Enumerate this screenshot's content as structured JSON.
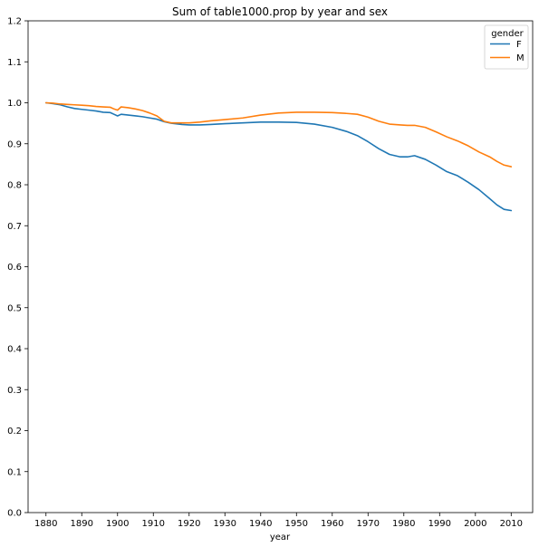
{
  "chart_data": {
    "type": "line",
    "title": "Sum of table1000.prop by year and sex",
    "xlabel": "year",
    "ylabel": "",
    "xlim": [
      1875,
      2016
    ],
    "ylim": [
      0.0,
      1.2
    ],
    "xticks": [
      1880,
      1890,
      1900,
      1910,
      1920,
      1930,
      1940,
      1950,
      1960,
      1970,
      1980,
      1990,
      2000,
      2010
    ],
    "xtick_labels": [
      "1880",
      "1890",
      "1900",
      "1910",
      "1920",
      "1930",
      "1940",
      "1950",
      "1960",
      "1970",
      "1980",
      "1990",
      "2000",
      "2010"
    ],
    "yticks": [
      0.0,
      0.1,
      0.2,
      0.3,
      0.4,
      0.5,
      0.6,
      0.7,
      0.8,
      0.9,
      1.0,
      1.1,
      1.2
    ],
    "ytick_labels": [
      "0.0",
      "0.1",
      "0.2",
      "0.3",
      "0.4",
      "0.5",
      "0.6",
      "0.7",
      "0.8",
      "0.9",
      "1.0",
      "1.1",
      "1.2"
    ],
    "grid": false,
    "legend": {
      "title": "gender",
      "placement": "top-right"
    },
    "series": [
      {
        "name": "F",
        "color": "#1f77b4",
        "points": [
          [
            1880,
            1.0
          ],
          [
            1882,
            0.998
          ],
          [
            1884,
            0.995
          ],
          [
            1886,
            0.99
          ],
          [
            1888,
            0.986
          ],
          [
            1890,
            0.984
          ],
          [
            1892,
            0.982
          ],
          [
            1894,
            0.98
          ],
          [
            1896,
            0.977
          ],
          [
            1898,
            0.976
          ],
          [
            1899,
            0.972
          ],
          [
            1900,
            0.968
          ],
          [
            1901,
            0.972
          ],
          [
            1903,
            0.97
          ],
          [
            1905,
            0.968
          ],
          [
            1907,
            0.966
          ],
          [
            1909,
            0.963
          ],
          [
            1911,
            0.96
          ],
          [
            1913,
            0.954
          ],
          [
            1915,
            0.95
          ],
          [
            1918,
            0.947
          ],
          [
            1920,
            0.946
          ],
          [
            1923,
            0.946
          ],
          [
            1926,
            0.947
          ],
          [
            1930,
            0.949
          ],
          [
            1935,
            0.951
          ],
          [
            1940,
            0.953
          ],
          [
            1945,
            0.953
          ],
          [
            1950,
            0.952
          ],
          [
            1955,
            0.948
          ],
          [
            1960,
            0.94
          ],
          [
            1964,
            0.93
          ],
          [
            1967,
            0.92
          ],
          [
            1970,
            0.905
          ],
          [
            1973,
            0.888
          ],
          [
            1976,
            0.874
          ],
          [
            1979,
            0.868
          ],
          [
            1981,
            0.868
          ],
          [
            1983,
            0.871
          ],
          [
            1986,
            0.862
          ],
          [
            1989,
            0.848
          ],
          [
            1992,
            0.832
          ],
          [
            1995,
            0.822
          ],
          [
            1998,
            0.806
          ],
          [
            2001,
            0.788
          ],
          [
            2004,
            0.766
          ],
          [
            2006,
            0.751
          ],
          [
            2008,
            0.74
          ],
          [
            2010,
            0.737
          ]
        ]
      },
      {
        "name": "M",
        "color": "#ff7f0e",
        "points": [
          [
            1880,
            1.0
          ],
          [
            1882,
            0.999
          ],
          [
            1884,
            0.997
          ],
          [
            1886,
            0.996
          ],
          [
            1888,
            0.995
          ],
          [
            1890,
            0.994
          ],
          [
            1892,
            0.993
          ],
          [
            1894,
            0.991
          ],
          [
            1896,
            0.99
          ],
          [
            1898,
            0.989
          ],
          [
            1899,
            0.985
          ],
          [
            1900,
            0.982
          ],
          [
            1901,
            0.99
          ],
          [
            1903,
            0.988
          ],
          [
            1905,
            0.985
          ],
          [
            1907,
            0.981
          ],
          [
            1909,
            0.975
          ],
          [
            1911,
            0.968
          ],
          [
            1913,
            0.955
          ],
          [
            1915,
            0.951
          ],
          [
            1918,
            0.951
          ],
          [
            1920,
            0.951
          ],
          [
            1923,
            0.953
          ],
          [
            1926,
            0.956
          ],
          [
            1930,
            0.959
          ],
          [
            1935,
            0.963
          ],
          [
            1940,
            0.97
          ],
          [
            1945,
            0.975
          ],
          [
            1950,
            0.977
          ],
          [
            1955,
            0.977
          ],
          [
            1960,
            0.976
          ],
          [
            1964,
            0.974
          ],
          [
            1967,
            0.972
          ],
          [
            1970,
            0.965
          ],
          [
            1973,
            0.955
          ],
          [
            1976,
            0.948
          ],
          [
            1979,
            0.946
          ],
          [
            1981,
            0.945
          ],
          [
            1983,
            0.945
          ],
          [
            1986,
            0.94
          ],
          [
            1989,
            0.929
          ],
          [
            1992,
            0.917
          ],
          [
            1995,
            0.907
          ],
          [
            1998,
            0.895
          ],
          [
            2001,
            0.88
          ],
          [
            2004,
            0.868
          ],
          [
            2006,
            0.857
          ],
          [
            2008,
            0.848
          ],
          [
            2010,
            0.844
          ]
        ]
      }
    ]
  }
}
